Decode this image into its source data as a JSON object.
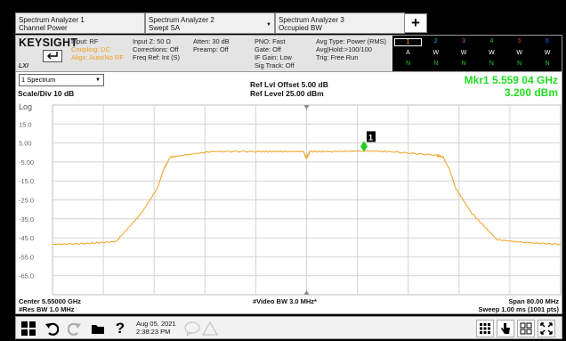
{
  "measurement_tabs": [
    {
      "name": "Spectrum Analyzer 1",
      "mode": "Channel Power"
    },
    {
      "name": "Spectrum Analyzer 2",
      "mode": "Swept SA"
    },
    {
      "name": "Spectrum Analyzer 3",
      "mode": "Occupied BW"
    }
  ],
  "add_tab_label": "+",
  "infobar": {
    "brand": "KEYSIGHT",
    "lxi": "LXI",
    "input": "Input: RF",
    "coupling": "Coupling: DC",
    "align": "Align: Auto/No RF",
    "input_z": "Input Z: 50 Ω",
    "corrections": "Corrections: Off",
    "freq_ref": "Freq Ref: Int (S)",
    "atten": "Atten: 30 dB",
    "preamp": "Preamp: Off",
    "pno": "PNO: Fast",
    "gate": "Gate: Off",
    "if_gain": "IF Gain: Low",
    "sig_track": "Sig Track: Off",
    "avg_type": "Avg Type: Power (RMS)",
    "avg_hold": "Avg|Hold:>100/100",
    "trig": "Trig: Free Run",
    "traces": [
      {
        "num": "1",
        "type": "A",
        "det": "N",
        "color": "#f5c400"
      },
      {
        "num": "2",
        "type": "W",
        "det": "N",
        "color": "#2db5f0"
      },
      {
        "num": "3",
        "type": "W",
        "det": "N",
        "color": "#d040d0"
      },
      {
        "num": "4",
        "type": "W",
        "det": "N",
        "color": "#22cc22"
      },
      {
        "num": "5",
        "type": "W",
        "det": "N",
        "color": "#e03030"
      },
      {
        "num": "6",
        "type": "W",
        "det": "N",
        "color": "#3060ff"
      }
    ]
  },
  "header": {
    "window_select": "1 Spectrum",
    "scale": "Scale/Div 10 dB",
    "log": "Log",
    "ref_offset": "Ref Lvl Offset 5.00 dB",
    "ref_level": "Ref Level 25.00 dBm",
    "marker_freq": "Mkr1  5.559 04 GHz",
    "marker_amp": "3.200 dBm"
  },
  "plot": {
    "y_labels": [
      "15.0",
      "5.00",
      "-5.00",
      "-15.0",
      "-25.0",
      "-35.0",
      "-45.0",
      "-55.0",
      "-65.0"
    ],
    "marker_label": "1"
  },
  "chart_data": {
    "type": "line",
    "x_unit": "GHz",
    "y_unit": "dBm",
    "xlim": [
      5.51,
      5.59
    ],
    "ylim": [
      -75,
      25
    ],
    "grid": true,
    "series": [
      {
        "color": "#f0a830",
        "x": [
          5.51,
          5.5155,
          5.52,
          5.524,
          5.5265,
          5.5275,
          5.5285,
          5.5305,
          5.535,
          5.5425,
          5.546,
          5.5495,
          5.55,
          5.5505,
          5.554,
          5.559,
          5.563,
          5.5705,
          5.5715,
          5.5725,
          5.5735,
          5.576,
          5.58,
          5.5845,
          5.59
        ],
        "y": [
          -48.5,
          -48,
          -47,
          -32,
          -19,
          -9,
          -2.5,
          -1.5,
          0.5,
          0.5,
          0.5,
          0.5,
          -3,
          0.5,
          0.5,
          0.8,
          0.5,
          -1.5,
          -2.5,
          -9,
          -19,
          -32,
          -46,
          -47.5,
          -48.5
        ]
      }
    ],
    "marker": {
      "name": "Mkr1",
      "x": 5.55904,
      "y": 3.2
    }
  },
  "footer": {
    "center": "Center 5.55000 GHz",
    "res_bw": "#Res BW 1.0 MHz",
    "video_bw": "#Video BW 3.0 MHz*",
    "span": "Span 80.00 MHz",
    "sweep": "Sweep 1.00 ms (1001 pts)"
  },
  "taskbar": {
    "date": "Aug 05, 2021",
    "time": "2:38:23 PM",
    "help": "?"
  }
}
